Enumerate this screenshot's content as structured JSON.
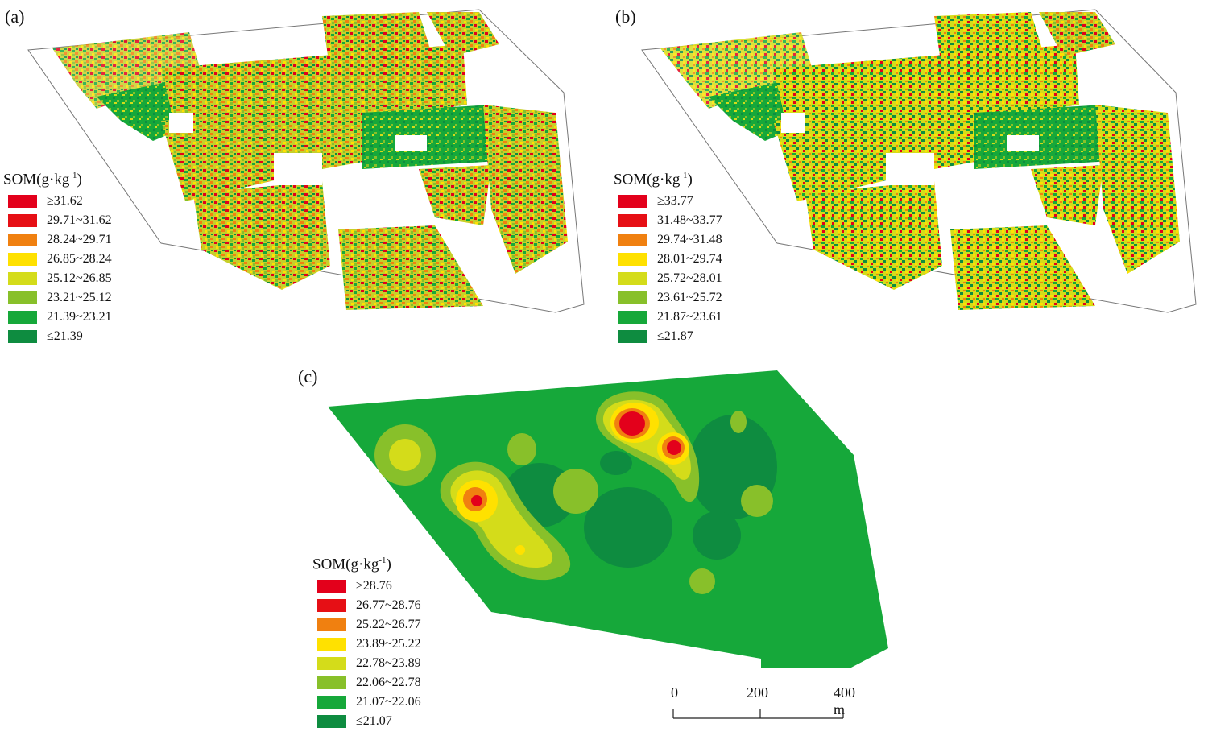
{
  "panels": {
    "a": {
      "label": "(a)",
      "legend_title": "SOM(g·kg",
      "legend_sup": "-1",
      "legend_close": ")",
      "classes": [
        {
          "label": "≥31.62",
          "color": "#e3001b"
        },
        {
          "label": "29.71~31.62",
          "color": "#e60f15"
        },
        {
          "label": "28.24~29.71",
          "color": "#f08010"
        },
        {
          "label": "26.85~28.24",
          "color": "#ffe100"
        },
        {
          "label": "25.12~26.85",
          "color": "#d4dc1a"
        },
        {
          "label": "23.21~25.12",
          "color": "#88c02a"
        },
        {
          "label": "21.39~23.21",
          "color": "#16a83a"
        },
        {
          "label": "≤21.39",
          "color": "#0e8c40"
        }
      ]
    },
    "b": {
      "label": "(b)",
      "legend_title": "SOM(g·kg",
      "legend_sup": "-1",
      "legend_close": ")",
      "classes": [
        {
          "label": "≥33.77",
          "color": "#e3001b"
        },
        {
          "label": "31.48~33.77",
          "color": "#e60f15"
        },
        {
          "label": "29.74~31.48",
          "color": "#f08010"
        },
        {
          "label": "28.01~29.74",
          "color": "#ffe100"
        },
        {
          "label": "25.72~28.01",
          "color": "#d4dc1a"
        },
        {
          "label": "23.61~25.72",
          "color": "#88c02a"
        },
        {
          "label": "21.87~23.61",
          "color": "#16a83a"
        },
        {
          "label": "≤21.87",
          "color": "#0e8c40"
        }
      ]
    },
    "c": {
      "label": "(c)",
      "legend_title": "SOM(g·kg",
      "legend_sup": "-1",
      "legend_close": ")",
      "classes": [
        {
          "label": "≥28.76",
          "color": "#e3001b"
        },
        {
          "label": "26.77~28.76",
          "color": "#e60f15"
        },
        {
          "label": "25.22~26.77",
          "color": "#f08010"
        },
        {
          "label": "23.89~25.22",
          "color": "#ffe100"
        },
        {
          "label": "22.78~23.89",
          "color": "#d4dc1a"
        },
        {
          "label": "22.06~22.78",
          "color": "#88c02a"
        },
        {
          "label": "21.07~22.06",
          "color": "#16a83a"
        },
        {
          "label": "≤21.07",
          "color": "#0e8c40"
        }
      ]
    }
  },
  "scalebar": {
    "ticks": [
      "0",
      "200",
      "400 m"
    ]
  }
}
